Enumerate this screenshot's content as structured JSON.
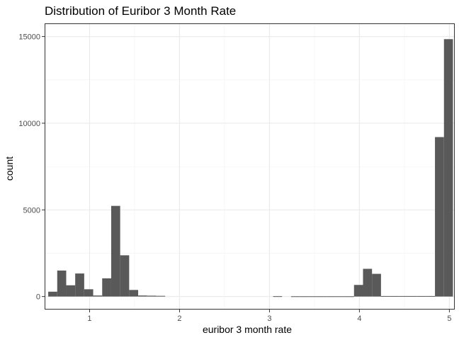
{
  "chart_data": {
    "type": "bar",
    "title": "Distribution of Euribor 3 Month Rate",
    "xlabel": "euribor 3 month rate",
    "ylabel": "count",
    "xlim": [
      0.5,
      5.06
    ],
    "ylim": [
      -750,
      15760
    ],
    "x_ticks": [
      1,
      2,
      3,
      4,
      5
    ],
    "x_tick_labels": [
      "1",
      "2",
      "3",
      "4",
      "5"
    ],
    "y_ticks": [
      0,
      5000,
      10000,
      15000
    ],
    "y_tick_labels": [
      "0",
      "5000",
      "10000",
      "15000"
    ],
    "x_minor_ticks": [
      1.5,
      2.5,
      3.5,
      4.5
    ],
    "y_minor_ticks": [
      2500,
      7500,
      12500
    ],
    "grid": true,
    "bar_color": "#595959",
    "bins": [
      {
        "x0": 0.54,
        "x1": 0.64,
        "value": 280
      },
      {
        "x0": 0.64,
        "x1": 0.74,
        "value": 1500
      },
      {
        "x0": 0.74,
        "x1": 0.84,
        "value": 650
      },
      {
        "x0": 0.84,
        "x1": 0.94,
        "value": 1330
      },
      {
        "x0": 0.94,
        "x1": 1.04,
        "value": 420
      },
      {
        "x0": 1.04,
        "x1": 1.14,
        "value": 60
      },
      {
        "x0": 1.14,
        "x1": 1.24,
        "value": 1050
      },
      {
        "x0": 1.24,
        "x1": 1.34,
        "value": 5230
      },
      {
        "x0": 1.34,
        "x1": 1.44,
        "value": 2380
      },
      {
        "x0": 1.44,
        "x1": 1.54,
        "value": 380
      },
      {
        "x0": 1.54,
        "x1": 1.64,
        "value": 60
      },
      {
        "x0": 1.64,
        "x1": 1.74,
        "value": 50
      },
      {
        "x0": 1.74,
        "x1": 1.84,
        "value": 40
      },
      {
        "x0": 3.04,
        "x1": 3.14,
        "value": 20
      },
      {
        "x0": 3.24,
        "x1": 3.34,
        "value": 15
      },
      {
        "x0": 3.34,
        "x1": 3.44,
        "value": 15
      },
      {
        "x0": 3.44,
        "x1": 3.54,
        "value": 15
      },
      {
        "x0": 3.54,
        "x1": 3.64,
        "value": 15
      },
      {
        "x0": 3.64,
        "x1": 3.74,
        "value": 15
      },
      {
        "x0": 3.74,
        "x1": 3.84,
        "value": 15
      },
      {
        "x0": 3.84,
        "x1": 3.94,
        "value": 15
      },
      {
        "x0": 3.94,
        "x1": 4.04,
        "value": 670
      },
      {
        "x0": 4.04,
        "x1": 4.14,
        "value": 1600
      },
      {
        "x0": 4.14,
        "x1": 4.24,
        "value": 1310
      },
      {
        "x0": 4.24,
        "x1": 4.34,
        "value": 30
      },
      {
        "x0": 4.34,
        "x1": 4.44,
        "value": 30
      },
      {
        "x0": 4.44,
        "x1": 4.54,
        "value": 30
      },
      {
        "x0": 4.54,
        "x1": 4.64,
        "value": 30
      },
      {
        "x0": 4.64,
        "x1": 4.74,
        "value": 30
      },
      {
        "x0": 4.74,
        "x1": 4.84,
        "value": 30
      },
      {
        "x0": 4.84,
        "x1": 4.94,
        "value": 9200
      },
      {
        "x0": 4.94,
        "x1": 5.04,
        "value": 14850
      }
    ]
  }
}
